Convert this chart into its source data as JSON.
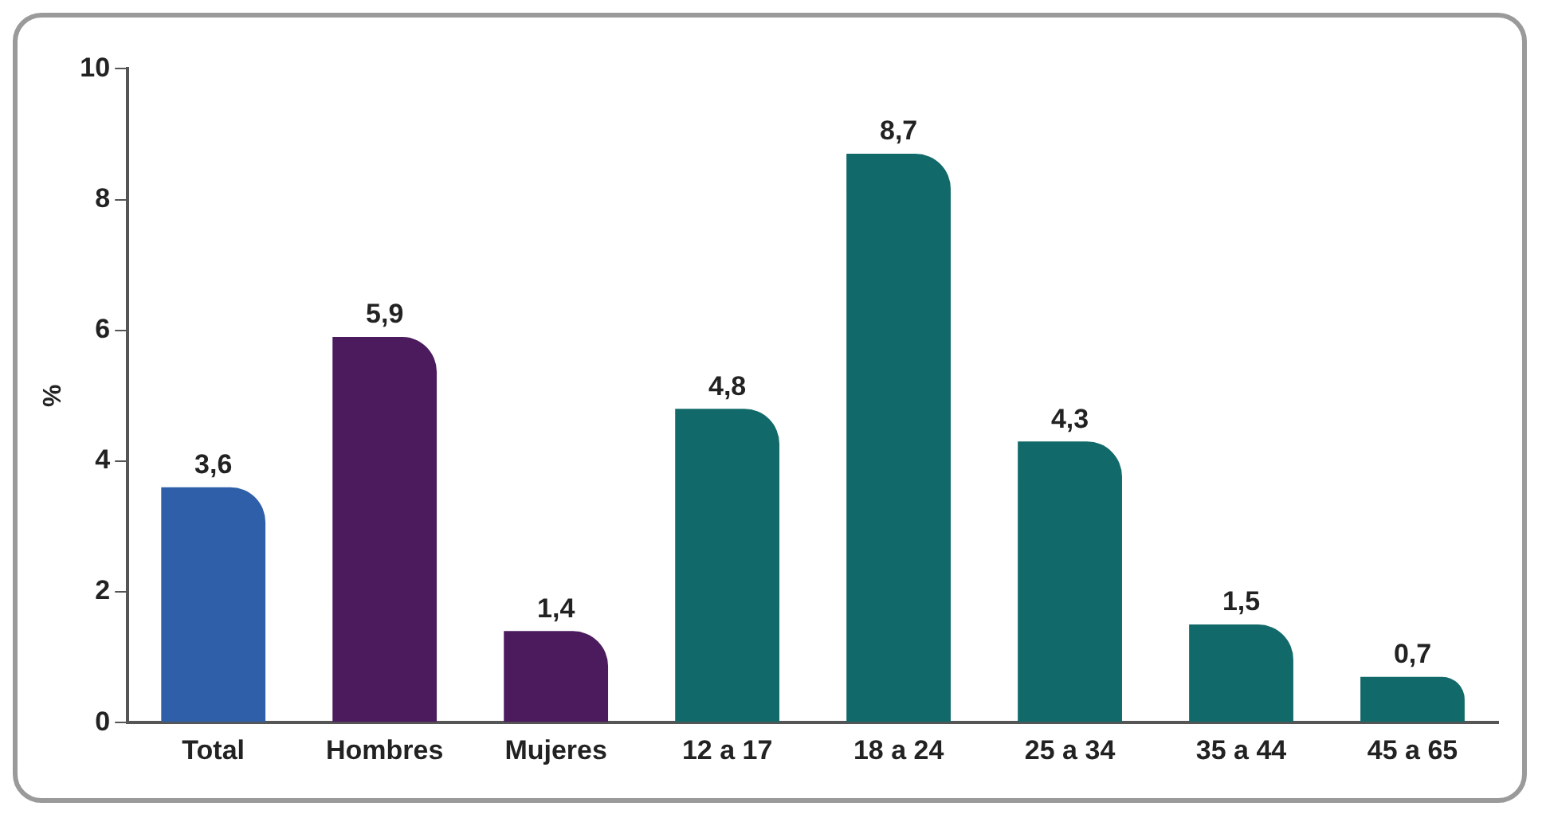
{
  "chart_data": {
    "type": "bar",
    "ylabel": "%",
    "categories": [
      "Total",
      "Hombres",
      "Mujeres",
      "12 a 17",
      "18 a 24",
      "25 a 34",
      "35 a 44",
      "45 a 65"
    ],
    "values": [
      3.6,
      5.9,
      1.4,
      4.8,
      8.7,
      4.3,
      1.5,
      0.7
    ],
    "value_labels": [
      "3,6",
      "5,9",
      "1,4",
      "4,8",
      "8,7",
      "4,3",
      "1,5",
      "0,7"
    ],
    "colors": [
      "#2f5fa9",
      "#4b1b5e",
      "#4b1b5e",
      "#11696a",
      "#11696a",
      "#11696a",
      "#11696a",
      "#11696a"
    ],
    "ylim": [
      0,
      10
    ],
    "yticks": [
      0,
      2,
      4,
      6,
      8,
      10
    ],
    "grid": false,
    "legend": false
  }
}
